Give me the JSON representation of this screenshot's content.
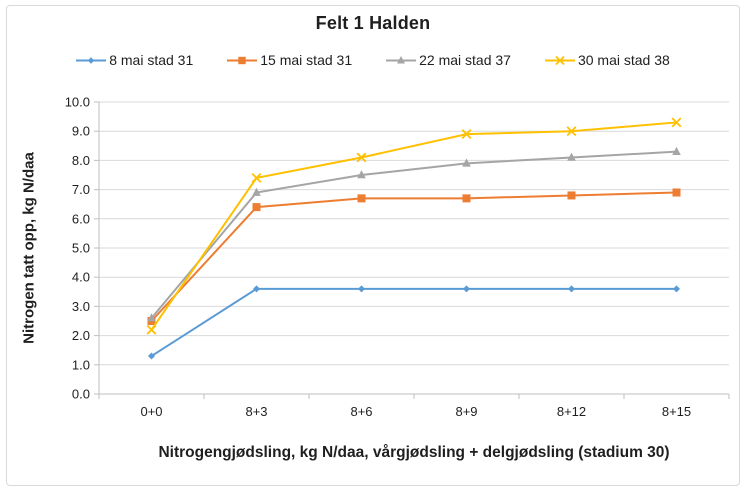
{
  "chart_data": {
    "type": "line",
    "title": "Felt 1 Halden",
    "xlabel": "Nitrogengjødsling, kg N/daa, vårgjødsling + delgjødsling (stadium 30)",
    "ylabel": "Nitrogen tatt opp, kg N/daa",
    "categories": [
      "0+0",
      "8+3",
      "8+6",
      "8+9",
      "8+12",
      "8+15"
    ],
    "series": [
      {
        "name": "8 mai stad 31",
        "color": "#5B9BD5",
        "marker": "diamond",
        "values": [
          1.3,
          3.6,
          3.6,
          3.6,
          3.6,
          3.6
        ]
      },
      {
        "name": "15 mai stad 31",
        "color": "#ED7D31",
        "marker": "square",
        "values": [
          2.5,
          6.4,
          6.7,
          6.7,
          6.8,
          6.9
        ]
      },
      {
        "name": "22 mai stad 37",
        "color": "#A5A5A5",
        "marker": "triangle",
        "values": [
          2.6,
          6.9,
          7.5,
          7.9,
          8.1,
          8.3
        ]
      },
      {
        "name": "30 mai stad 38",
        "color": "#FFC000",
        "marker": "x",
        "values": [
          2.2,
          7.4,
          8.1,
          8.9,
          9.0,
          9.3
        ]
      }
    ],
    "ylim": [
      0,
      10
    ],
    "ytick_step": 1.0,
    "ytick_labels": [
      "0.0",
      "1.0",
      "2.0",
      "3.0",
      "4.0",
      "5.0",
      "6.0",
      "7.0",
      "8.0",
      "9.0",
      "10.0"
    ],
    "legend_position": "top",
    "grid": "horizontal",
    "grid_color": "#D9D9D9",
    "axis_color": "#BFBFBF"
  }
}
